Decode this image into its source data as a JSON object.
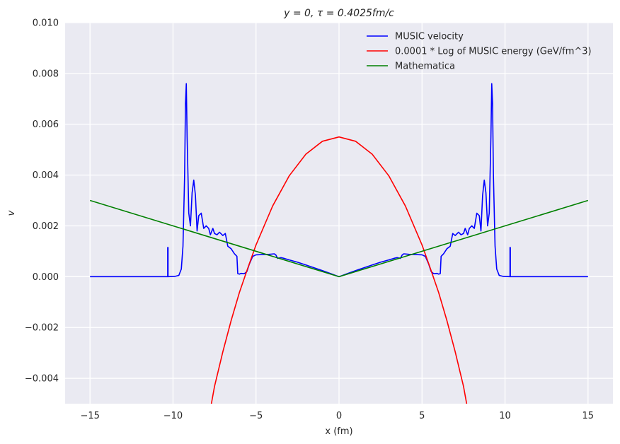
{
  "chart_data": {
    "type": "line",
    "title": "y = 0, τ = 0.4025fm/c",
    "xlabel": "x (fm)",
    "ylabel": "v",
    "xlim": [
      -16.5,
      16.5
    ],
    "ylim": [
      -0.005,
      0.01
    ],
    "x_ticks": [
      -15,
      -10,
      -5,
      0,
      5,
      10,
      15
    ],
    "x_tick_labels": [
      "−15",
      "−10",
      "−5",
      "0",
      "5",
      "10",
      "15"
    ],
    "y_ticks": [
      -0.004,
      -0.002,
      0.0,
      0.002,
      0.004,
      0.006,
      0.008,
      0.01
    ],
    "y_tick_labels": [
      "−0.004",
      "−0.002",
      "0.000",
      "0.002",
      "0.004",
      "0.006",
      "0.008",
      "0.010"
    ],
    "grid": true,
    "legend_position": "top-right",
    "series": [
      {
        "name": "MUSIC velocity",
        "color": "#0000ff",
        "points": [
          [
            0,
            0
          ],
          [
            0.5,
            0.00012
          ],
          [
            1,
            0.00024
          ],
          [
            1.5,
            0.00035
          ],
          [
            2,
            0.00046
          ],
          [
            2.5,
            0.00057
          ],
          [
            3,
            0.00066
          ],
          [
            3.3,
            0.00072
          ],
          [
            3.5,
            0.00075
          ],
          [
            3.7,
            0.00072
          ],
          [
            3.8,
            0.00085
          ],
          [
            3.9,
            0.0009
          ],
          [
            4.2,
            0.00088
          ],
          [
            4.6,
            0.00087
          ],
          [
            5.0,
            0.00086
          ],
          [
            5.2,
            0.0008
          ],
          [
            5.4,
            0.0005
          ],
          [
            5.55,
            0.0002
          ],
          [
            5.7,
            0.00012
          ],
          [
            5.9,
            0.00013
          ],
          [
            6.0,
            0.0001
          ],
          [
            6.1,
            0.00012
          ],
          [
            6.15,
            0.0008
          ],
          [
            6.3,
            0.0009
          ],
          [
            6.5,
            0.0011
          ],
          [
            6.7,
            0.0012
          ],
          [
            6.85,
            0.0017
          ],
          [
            7.0,
            0.00162
          ],
          [
            7.2,
            0.00175
          ],
          [
            7.35,
            0.00165
          ],
          [
            7.5,
            0.0017
          ],
          [
            7.6,
            0.0019
          ],
          [
            7.75,
            0.00165
          ],
          [
            7.85,
            0.0019
          ],
          [
            8.0,
            0.002
          ],
          [
            8.15,
            0.0019
          ],
          [
            8.3,
            0.0025
          ],
          [
            8.45,
            0.0024
          ],
          [
            8.55,
            0.0018
          ],
          [
            8.65,
            0.0032
          ],
          [
            8.75,
            0.0038
          ],
          [
            8.85,
            0.0033
          ],
          [
            8.95,
            0.002
          ],
          [
            9.05,
            0.0025
          ],
          [
            9.15,
            0.0055
          ],
          [
            9.2,
            0.0076
          ],
          [
            9.25,
            0.0068
          ],
          [
            9.3,
            0.004
          ],
          [
            9.4,
            0.0012
          ],
          [
            9.5,
            0.0003
          ],
          [
            9.65,
            5e-05
          ],
          [
            9.9,
            1e-05
          ],
          [
            10.3,
            0.0
          ],
          [
            10.3,
            0.00115
          ],
          [
            10.32,
            0.00115
          ],
          [
            10.32,
            0.0
          ],
          [
            11,
            0
          ],
          [
            12,
            0
          ],
          [
            13,
            0
          ],
          [
            14,
            0
          ],
          [
            15,
            0
          ]
        ]
      },
      {
        "name": "0.0001 * Log of MUSIC energy (GeV/fm^3)",
        "color": "#ff0000",
        "points": [
          [
            0,
            0.0055
          ],
          [
            1,
            0.00533
          ],
          [
            2,
            0.00482
          ],
          [
            3,
            0.00397
          ],
          [
            4,
            0.00278
          ],
          [
            5,
            0.00125
          ],
          [
            5.5,
            0.00033
          ],
          [
            6,
            -0.00062
          ],
          [
            6.5,
            -0.00173
          ],
          [
            7,
            -0.00296
          ],
          [
            7.5,
            -0.00432
          ],
          [
            7.7,
            -0.00504
          ]
        ]
      },
      {
        "name": "Mathematica",
        "color": "#008000",
        "points": [
          [
            -15,
            0.003
          ],
          [
            0,
            0
          ],
          [
            15,
            0.003
          ]
        ]
      }
    ]
  }
}
